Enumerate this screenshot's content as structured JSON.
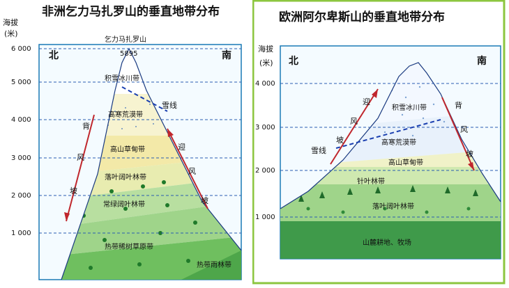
{
  "left": {
    "title": "非洲乞力马扎罗山的垂直地带分布",
    "axis_label_1": "海拔",
    "axis_label_2": "(米)",
    "ticks": [
      "6 000",
      "5 000",
      "4 000",
      "3 000",
      "2 000",
      "1 000"
    ],
    "north": "北",
    "south": "南",
    "peak_name": "乞力马扎罗山",
    "peak_height": "5895",
    "zones": [
      "积雪冰川带",
      "高寒荒漠带",
      "高山草甸带",
      "落叶阔叶林带",
      "常绿阔叶林带",
      "热带稀树草原带",
      "热带雨林带"
    ],
    "snowline": "雪线",
    "leeward": [
      "背",
      "风",
      "坡"
    ],
    "windward": [
      "迎",
      "风",
      "坡"
    ]
  },
  "right": {
    "title": "欧洲阿尔卑斯山的垂直地带分布",
    "axis_label_1": "海拔",
    "axis_label_2": "(米)",
    "ticks": [
      "4 000",
      "3 000",
      "2 000",
      "1 000"
    ],
    "north": "北",
    "south": "南",
    "zones": [
      "积雪冰川带",
      "高寒荒漠带",
      "高山草甸带",
      "针叶林带",
      "落叶阔叶林带",
      "山麓耕地、牧场"
    ],
    "snowline": "雪线",
    "windward": [
      "迎",
      "风",
      "坡"
    ],
    "leeward": [
      "背",
      "风",
      "坡"
    ]
  },
  "colors": {
    "frame": "#8cc63f",
    "border": "#1a7ab5",
    "arrow": "#c0272d",
    "snowline": "#1a3fb0",
    "grid": "#2a5db0"
  }
}
